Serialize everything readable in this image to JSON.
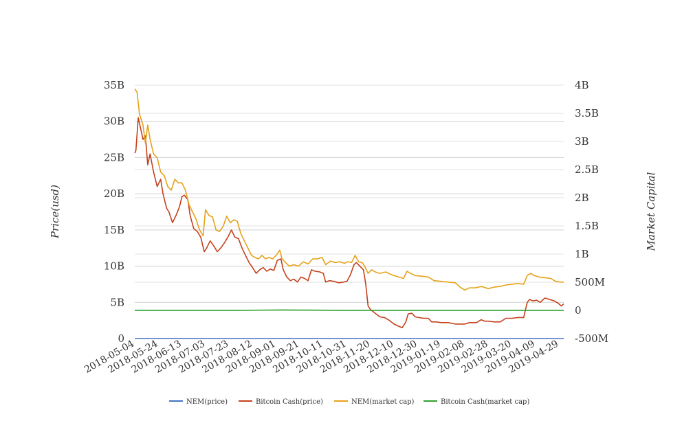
{
  "chart_data": {
    "type": "line",
    "title": "",
    "ylabel": "Price(usd)",
    "y2label": "Market Capital",
    "x_tick_labels": [
      "2018-05-04",
      "2018-05-24",
      "2018-06-13",
      "2018-07-03",
      "2018-07-23",
      "2018-08-12",
      "2018-09-01",
      "2018-09-21",
      "2018-10-11",
      "2018-10-31",
      "2018-11-20",
      "2018-12-10",
      "2018-12-30",
      "2019-01-19",
      "2019-02-08",
      "2019-02-28",
      "2019-03-20",
      "2019-04-09",
      "2019-04-29"
    ],
    "x_range": [
      "2018-05-04",
      "2019-05-03"
    ],
    "ylim": [
      0,
      35000000000
    ],
    "y_tick_values": [
      0,
      5000000000,
      10000000000,
      15000000000,
      20000000000,
      25000000000,
      30000000000,
      35000000000
    ],
    "y_tick_labels": [
      "0",
      "5B",
      "10B",
      "15B",
      "20B",
      "25B",
      "30B",
      "35B"
    ],
    "y2lim": [
      -500000000,
      4000000000
    ],
    "y2_tick_values": [
      -500000000,
      0,
      500000000,
      1000000000,
      1500000000,
      2000000000,
      2500000000,
      3000000000,
      3500000000,
      4000000000
    ],
    "y2_tick_labels": [
      "-500M",
      "0",
      "500M",
      "1B",
      "1.5B",
      "2B",
      "2.5B",
      "3B",
      "3.5B",
      "4B"
    ],
    "grid": true,
    "legend_position": "bottom",
    "series": [
      {
        "name": "NEM(price)",
        "axis": "left",
        "color": "#4472c4",
        "points": [
          [
            "2018-05-04",
            0.37
          ],
          [
            "2018-08-01",
            0.14
          ],
          [
            "2018-11-01",
            0.1
          ],
          [
            "2019-02-01",
            0.05
          ],
          [
            "2019-05-03",
            0.07
          ]
        ]
      },
      {
        "name": "Bitcoin Cash(price)",
        "axis": "left",
        "color": "#c5401a",
        "points": [
          [
            "2018-05-04",
            25600000000
          ],
          [
            "2018-05-05",
            26000000000
          ],
          [
            "2018-05-07",
            30500000000
          ],
          [
            "2018-05-09",
            29000000000
          ],
          [
            "2018-05-11",
            27500000000
          ],
          [
            "2018-05-13",
            28000000000
          ],
          [
            "2018-05-15",
            24000000000
          ],
          [
            "2018-05-17",
            25500000000
          ],
          [
            "2018-05-20",
            23000000000
          ],
          [
            "2018-05-23",
            21000000000
          ],
          [
            "2018-05-26",
            22000000000
          ],
          [
            "2018-05-28",
            20000000000
          ],
          [
            "2018-05-31",
            18000000000
          ],
          [
            "2018-06-02",
            17500000000
          ],
          [
            "2018-06-05",
            16000000000
          ],
          [
            "2018-06-08",
            17000000000
          ],
          [
            "2018-06-11",
            18200000000
          ],
          [
            "2018-06-13",
            19600000000
          ],
          [
            "2018-06-15",
            19800000000
          ],
          [
            "2018-06-18",
            19200000000
          ],
          [
            "2018-06-20",
            17000000000
          ],
          [
            "2018-06-23",
            15200000000
          ],
          [
            "2018-06-26",
            14800000000
          ],
          [
            "2018-06-29",
            14000000000
          ],
          [
            "2018-07-02",
            12000000000
          ],
          [
            "2018-07-04",
            12500000000
          ],
          [
            "2018-07-07",
            13500000000
          ],
          [
            "2018-07-10",
            12800000000
          ],
          [
            "2018-07-13",
            12000000000
          ],
          [
            "2018-07-16",
            12500000000
          ],
          [
            "2018-07-19",
            13200000000
          ],
          [
            "2018-07-22",
            14000000000
          ],
          [
            "2018-07-25",
            15000000000
          ],
          [
            "2018-07-28",
            14000000000
          ],
          [
            "2018-07-31",
            13800000000
          ],
          [
            "2018-08-03",
            12500000000
          ],
          [
            "2018-08-06",
            11500000000
          ],
          [
            "2018-08-09",
            10500000000
          ],
          [
            "2018-08-12",
            9800000000
          ],
          [
            "2018-08-15",
            9000000000
          ],
          [
            "2018-08-18",
            9500000000
          ],
          [
            "2018-08-21",
            9800000000
          ],
          [
            "2018-08-24",
            9300000000
          ],
          [
            "2018-08-27",
            9600000000
          ],
          [
            "2018-08-30",
            9400000000
          ],
          [
            "2018-09-02",
            10800000000
          ],
          [
            "2018-09-05",
            11000000000
          ],
          [
            "2018-09-07",
            9500000000
          ],
          [
            "2018-09-10",
            8500000000
          ],
          [
            "2018-09-13",
            8000000000
          ],
          [
            "2018-09-16",
            8200000000
          ],
          [
            "2018-09-19",
            7800000000
          ],
          [
            "2018-09-22",
            8500000000
          ],
          [
            "2018-09-25",
            8300000000
          ],
          [
            "2018-09-28",
            8000000000
          ],
          [
            "2018-10-01",
            9500000000
          ],
          [
            "2018-10-04",
            9300000000
          ],
          [
            "2018-10-08",
            9200000000
          ],
          [
            "2018-10-11",
            9000000000
          ],
          [
            "2018-10-13",
            7800000000
          ],
          [
            "2018-10-16",
            8000000000
          ],
          [
            "2018-10-20",
            7900000000
          ],
          [
            "2018-10-24",
            7700000000
          ],
          [
            "2018-10-28",
            7800000000
          ],
          [
            "2018-10-31",
            7900000000
          ],
          [
            "2018-11-03",
            8800000000
          ],
          [
            "2018-11-06",
            10200000000
          ],
          [
            "2018-11-08",
            10500000000
          ],
          [
            "2018-11-11",
            10000000000
          ],
          [
            "2018-11-14",
            9500000000
          ],
          [
            "2018-11-16",
            7500000000
          ],
          [
            "2018-11-18",
            4500000000
          ],
          [
            "2018-11-20",
            4000000000
          ],
          [
            "2018-11-24",
            3500000000
          ],
          [
            "2018-11-28",
            3000000000
          ],
          [
            "2018-12-02",
            2900000000
          ],
          [
            "2018-12-06",
            2500000000
          ],
          [
            "2018-12-10",
            2000000000
          ],
          [
            "2018-12-14",
            1700000000
          ],
          [
            "2018-12-17",
            1500000000
          ],
          [
            "2018-12-20",
            2300000000
          ],
          [
            "2018-12-22",
            3400000000
          ],
          [
            "2018-12-25",
            3500000000
          ],
          [
            "2018-12-28",
            3000000000
          ],
          [
            "2018-12-31",
            2900000000
          ],
          [
            "2019-01-04",
            2800000000
          ],
          [
            "2019-01-08",
            2800000000
          ],
          [
            "2019-01-11",
            2300000000
          ],
          [
            "2019-01-15",
            2300000000
          ],
          [
            "2019-01-19",
            2200000000
          ],
          [
            "2019-01-25",
            2200000000
          ],
          [
            "2019-01-31",
            2000000000
          ],
          [
            "2019-02-05",
            2000000000
          ],
          [
            "2019-02-08",
            2000000000
          ],
          [
            "2019-02-12",
            2200000000
          ],
          [
            "2019-02-18",
            2200000000
          ],
          [
            "2019-02-22",
            2600000000
          ],
          [
            "2019-02-25",
            2400000000
          ],
          [
            "2019-02-28",
            2400000000
          ],
          [
            "2019-03-05",
            2300000000
          ],
          [
            "2019-03-10",
            2300000000
          ],
          [
            "2019-03-15",
            2800000000
          ],
          [
            "2019-03-20",
            2800000000
          ],
          [
            "2019-03-25",
            2900000000
          ],
          [
            "2019-03-30",
            2900000000
          ],
          [
            "2019-04-02",
            5000000000
          ],
          [
            "2019-04-04",
            5400000000
          ],
          [
            "2019-04-07",
            5200000000
          ],
          [
            "2019-04-10",
            5300000000
          ],
          [
            "2019-04-13",
            5000000000
          ],
          [
            "2019-04-17",
            5600000000
          ],
          [
            "2019-04-21",
            5400000000
          ],
          [
            "2019-04-25",
            5200000000
          ],
          [
            "2019-04-28",
            4900000000
          ],
          [
            "2019-05-01",
            4500000000
          ],
          [
            "2019-05-03",
            4800000000
          ]
        ]
      },
      {
        "name": "NEM(market cap)",
        "axis": "left",
        "color": "#e6a117",
        "points": [
          [
            "2018-05-04",
            34500000000
          ],
          [
            "2018-05-06",
            34000000000
          ],
          [
            "2018-05-08",
            31000000000
          ],
          [
            "2018-05-11",
            29500000000
          ],
          [
            "2018-05-13",
            27000000000
          ],
          [
            "2018-05-15",
            29500000000
          ],
          [
            "2018-05-17",
            27500000000
          ],
          [
            "2018-05-20",
            25500000000
          ],
          [
            "2018-05-23",
            25000000000
          ],
          [
            "2018-05-26",
            23000000000
          ],
          [
            "2018-05-29",
            22500000000
          ],
          [
            "2018-06-01",
            21000000000
          ],
          [
            "2018-06-04",
            20500000000
          ],
          [
            "2018-06-07",
            22000000000
          ],
          [
            "2018-06-10",
            21500000000
          ],
          [
            "2018-06-13",
            21500000000
          ],
          [
            "2018-06-16",
            20500000000
          ],
          [
            "2018-06-19",
            18500000000
          ],
          [
            "2018-06-22",
            17500000000
          ],
          [
            "2018-06-25",
            16500000000
          ],
          [
            "2018-06-28",
            15000000000
          ],
          [
            "2018-07-01",
            14200000000
          ],
          [
            "2018-07-03",
            17800000000
          ],
          [
            "2018-07-06",
            17000000000
          ],
          [
            "2018-07-09",
            16800000000
          ],
          [
            "2018-07-12",
            15000000000
          ],
          [
            "2018-07-15",
            14800000000
          ],
          [
            "2018-07-18",
            15500000000
          ],
          [
            "2018-07-21",
            16900000000
          ],
          [
            "2018-07-24",
            16000000000
          ],
          [
            "2018-07-27",
            16400000000
          ],
          [
            "2018-07-30",
            16200000000
          ],
          [
            "2018-08-02",
            14500000000
          ],
          [
            "2018-08-05",
            13500000000
          ],
          [
            "2018-08-08",
            12500000000
          ],
          [
            "2018-08-11",
            11500000000
          ],
          [
            "2018-08-14",
            11200000000
          ],
          [
            "2018-08-17",
            11000000000
          ],
          [
            "2018-08-20",
            11500000000
          ],
          [
            "2018-08-23",
            11000000000
          ],
          [
            "2018-08-26",
            11200000000
          ],
          [
            "2018-08-29",
            11000000000
          ],
          [
            "2018-09-01",
            11500000000
          ],
          [
            "2018-09-04",
            12200000000
          ],
          [
            "2018-09-06",
            11000000000
          ],
          [
            "2018-09-09",
            10500000000
          ],
          [
            "2018-09-12",
            10000000000
          ],
          [
            "2018-09-16",
            10200000000
          ],
          [
            "2018-09-20",
            10000000000
          ],
          [
            "2018-09-24",
            10600000000
          ],
          [
            "2018-09-28",
            10300000000
          ],
          [
            "2018-10-02",
            11000000000
          ],
          [
            "2018-10-06",
            11000000000
          ],
          [
            "2018-10-10",
            11200000000
          ],
          [
            "2018-10-13",
            10200000000
          ],
          [
            "2018-10-17",
            10700000000
          ],
          [
            "2018-10-21",
            10500000000
          ],
          [
            "2018-10-25",
            10600000000
          ],
          [
            "2018-10-29",
            10400000000
          ],
          [
            "2018-11-01",
            10600000000
          ],
          [
            "2018-11-04",
            10500000000
          ],
          [
            "2018-11-07",
            11500000000
          ],
          [
            "2018-11-10",
            10600000000
          ],
          [
            "2018-11-13",
            10500000000
          ],
          [
            "2018-11-15",
            10000000000
          ],
          [
            "2018-11-18",
            9000000000
          ],
          [
            "2018-11-21",
            9500000000
          ],
          [
            "2018-11-24",
            9200000000
          ],
          [
            "2018-11-28",
            9000000000
          ],
          [
            "2018-12-03",
            9200000000
          ],
          [
            "2018-12-08",
            8800000000
          ],
          [
            "2018-12-14",
            8500000000
          ],
          [
            "2018-12-18",
            8300000000
          ],
          [
            "2018-12-21",
            9300000000
          ],
          [
            "2018-12-24",
            9000000000
          ],
          [
            "2018-12-28",
            8700000000
          ],
          [
            "2019-01-03",
            8600000000
          ],
          [
            "2019-01-08",
            8500000000
          ],
          [
            "2019-01-13",
            8000000000
          ],
          [
            "2019-01-19",
            7900000000
          ],
          [
            "2019-01-25",
            7800000000
          ],
          [
            "2019-01-31",
            7700000000
          ],
          [
            "2019-02-04",
            7100000000
          ],
          [
            "2019-02-08",
            6700000000
          ],
          [
            "2019-02-12",
            7000000000
          ],
          [
            "2019-02-17",
            7000000000
          ],
          [
            "2019-02-22",
            7200000000
          ],
          [
            "2019-02-28",
            6900000000
          ],
          [
            "2019-03-05",
            7100000000
          ],
          [
            "2019-03-10",
            7200000000
          ],
          [
            "2019-03-15",
            7400000000
          ],
          [
            "2019-03-20",
            7500000000
          ],
          [
            "2019-03-25",
            7600000000
          ],
          [
            "2019-03-30",
            7500000000
          ],
          [
            "2019-04-02",
            8700000000
          ],
          [
            "2019-04-05",
            9000000000
          ],
          [
            "2019-04-08",
            8700000000
          ],
          [
            "2019-04-12",
            8500000000
          ],
          [
            "2019-04-17",
            8400000000
          ],
          [
            "2019-04-22",
            8300000000
          ],
          [
            "2019-04-26",
            7900000000
          ],
          [
            "2019-04-30",
            7800000000
          ],
          [
            "2019-05-03",
            7800000000
          ]
        ]
      },
      {
        "name": "Bitcoin Cash(market cap)",
        "axis": "left",
        "color": "#2ca02c",
        "points": [
          [
            "2018-05-04",
            3900000000
          ],
          [
            "2018-08-01",
            3900000000
          ],
          [
            "2018-09-06",
            3950000000
          ],
          [
            "2018-11-01",
            3900000000
          ],
          [
            "2019-02-01",
            3900000000
          ],
          [
            "2019-05-03",
            3900000000
          ]
        ]
      }
    ]
  }
}
